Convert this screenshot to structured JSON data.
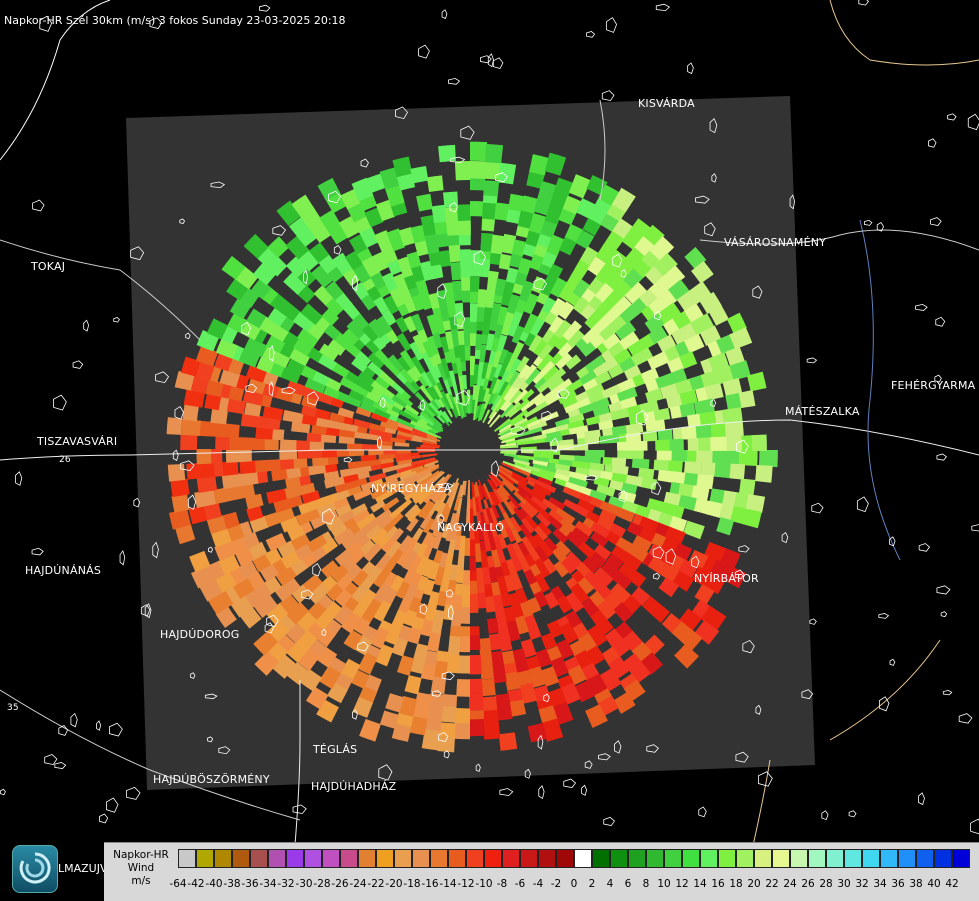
{
  "header": {
    "title": "Napkor-HR Szél 30km (m/s) 3 fokos Sunday 23-03-2025 20:18"
  },
  "cities": [
    {
      "name": "KISVÁRDA"
    },
    {
      "name": "VÁSÁROSNAMÉNY"
    },
    {
      "name": "TOKAJ"
    },
    {
      "name": "FEHÉRGYARMA"
    },
    {
      "name": "MÁTÉSZALKA"
    },
    {
      "name": "TISZAVASVÁRI"
    },
    {
      "name": "NYÍREGYHÁZA"
    },
    {
      "name": "NAGYKÁLLÓ"
    },
    {
      "name": "HAJDÚNÁNÁS"
    },
    {
      "name": "NYÍRBÁTOR"
    },
    {
      "name": "HAJDÚDOROG"
    },
    {
      "name": "TÉGLÁS"
    },
    {
      "name": "HAJDÚBÖSZÖRMÉNY"
    },
    {
      "name": "HAJDÚHADHÁZ"
    }
  ],
  "road_numbers": [
    "26",
    "35"
  ],
  "legend": {
    "title_line1": "Napkor-HR",
    "title_line2": "Wind",
    "title_line3": "m/s",
    "tick_labels": [
      "-64",
      "-42",
      "-40",
      "-38",
      "-36",
      "-34",
      "-32",
      "-30",
      "-28",
      "-26",
      "-24",
      "-22",
      "-20",
      "-18",
      "-16",
      "-14",
      "-12",
      "-10",
      "-8",
      "-6",
      "-4",
      "-2",
      "0",
      "2",
      "4",
      "6",
      "8",
      "10",
      "12",
      "14",
      "16",
      "18",
      "20",
      "22",
      "24",
      "26",
      "28",
      "30",
      "32",
      "34",
      "36",
      "38",
      "40",
      "42"
    ],
    "colors": [
      "#c8c8c8",
      "#b0a800",
      "#b08800",
      "#b05a10",
      "#a85050",
      "#b050b0",
      "#9a3ae8",
      "#b050e0",
      "#c050c0",
      "#c84c8c",
      "#e08030",
      "#f0a020",
      "#e8a050",
      "#e89050",
      "#e87830",
      "#e85c20",
      "#f04020",
      "#f02010",
      "#e02020",
      "#c81818",
      "#b01010",
      "#a00808",
      "#ffffff",
      "#007000",
      "#109010",
      "#20a020",
      "#30b830",
      "#40d040",
      "#40e040",
      "#60f060",
      "#80f040",
      "#a0f060",
      "#d8f080",
      "#e8f890",
      "#c8f8b0",
      "#a0f8c0",
      "#80f0d0",
      "#60e8e0",
      "#40d8f0",
      "#30b8f8",
      "#2090f8",
      "#1060f0",
      "#0030e0",
      "#0000d8"
    ]
  },
  "logo": {
    "text": "LMAZUJVAR"
  }
}
